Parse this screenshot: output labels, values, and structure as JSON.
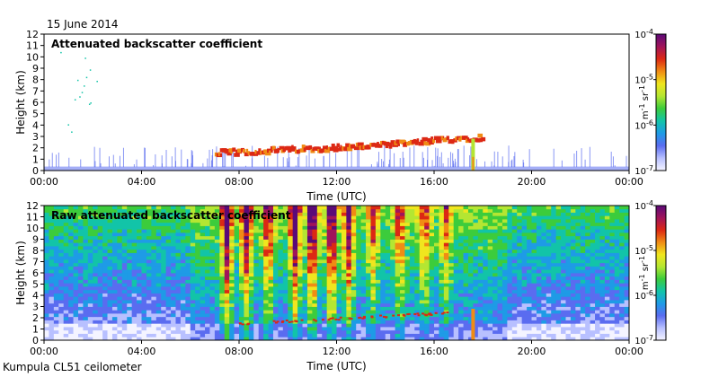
{
  "date_label": "15 June 2014",
  "footer_label": "Kumpula CL51 ceilometer",
  "colormap": [
    "#f4f4ff",
    "#b8c0ff",
    "#5a6cf0",
    "#1e9be6",
    "#12c4a8",
    "#3ccc3c",
    "#b4e632",
    "#f0e61e",
    "#f08c14",
    "#dc2814",
    "#a0145a",
    "#5a0a78"
  ],
  "chart_data": [
    {
      "type": "heatmap",
      "title": "Attenuated backscatter coefficient",
      "xlabel": "Time (UTC)",
      "ylabel": "Height (km)",
      "xlim": [
        0,
        24
      ],
      "ylim": [
        0,
        12
      ],
      "xticks": [
        "00:00",
        "04:00",
        "08:00",
        "12:00",
        "16:00",
        "20:00",
        "00:00"
      ],
      "yticks": [
        "0",
        "1",
        "2",
        "3",
        "4",
        "5",
        "6",
        "7",
        "8",
        "9",
        "10",
        "11",
        "12"
      ],
      "colorbar": {
        "ticks": [
          "10",
          "10",
          "10",
          "10"
        ],
        "exponents": [
          "-7",
          "-6",
          "-5",
          "-4"
        ],
        "label": "m",
        "label_exp1": "-1",
        "label_mid": " sr",
        "label_exp2": "-1"
      },
      "cloud_layer": [
        {
          "t": 7.0,
          "h": 1.5
        },
        {
          "t": 8.0,
          "h": 1.6
        },
        {
          "t": 9.0,
          "h": 1.7
        },
        {
          "t": 10.0,
          "h": 1.8
        },
        {
          "t": 11.0,
          "h": 1.9
        },
        {
          "t": 12.0,
          "h": 2.0
        },
        {
          "t": 13.0,
          "h": 2.1
        },
        {
          "t": 14.0,
          "h": 2.2
        },
        {
          "t": 15.0,
          "h": 2.4
        },
        {
          "t": 16.0,
          "h": 2.6
        },
        {
          "t": 17.0,
          "h": 2.8
        },
        {
          "t": 18.0,
          "h": 2.9
        }
      ],
      "precip": {
        "t": 17.6,
        "hmax": 2.8
      }
    },
    {
      "type": "heatmap",
      "title": "Raw attenuated backscatter coefficient",
      "xlabel": "Time (UTC)",
      "ylabel": "Height (km)",
      "xlim": [
        0,
        24
      ],
      "ylim": [
        0,
        12
      ],
      "xticks": [
        "00:00",
        "04:00",
        "08:00",
        "12:00",
        "16:00",
        "20:00",
        "00:00"
      ],
      "yticks": [
        "0",
        "1",
        "2",
        "3",
        "4",
        "5",
        "6",
        "7",
        "8",
        "9",
        "10",
        "11",
        "12"
      ],
      "colorbar": {
        "ticks": [
          "10",
          "10",
          "10",
          "10"
        ],
        "exponents": [
          "-7",
          "-6",
          "-5",
          "-4"
        ],
        "label": "m",
        "label_exp1": "-1",
        "label_mid": " sr",
        "label_exp2": "-1"
      },
      "signal_columns": [
        {
          "t": 7.5,
          "s": 0.9
        },
        {
          "t": 8.3,
          "s": 0.8
        },
        {
          "t": 9.2,
          "s": 0.7
        },
        {
          "t": 10.3,
          "s": 0.85
        },
        {
          "t": 11.0,
          "s": 0.95
        },
        {
          "t": 11.8,
          "s": 0.9
        },
        {
          "t": 12.5,
          "s": 0.75
        },
        {
          "t": 13.5,
          "s": 0.5
        },
        {
          "t": 14.6,
          "s": 0.6
        },
        {
          "t": 15.6,
          "s": 0.55
        },
        {
          "t": 16.5,
          "s": 0.45
        }
      ],
      "precip": {
        "t": 17.6,
        "hmax": 2.8
      }
    }
  ]
}
